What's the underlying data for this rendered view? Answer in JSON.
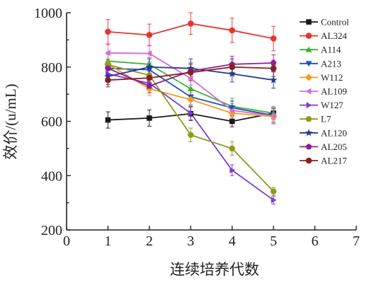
{
  "chart_data": {
    "type": "line",
    "title": "",
    "xlabel": "连续培养代数",
    "ylabel": "效价/(u/mL)",
    "xlim": [
      0,
      7
    ],
    "ylim": [
      200,
      1000
    ],
    "x_ticks": [
      0,
      1,
      2,
      3,
      4,
      5,
      6,
      7
    ],
    "y_ticks": [
      200,
      400,
      600,
      800,
      1000
    ],
    "grid": false,
    "legend_position": "top-right",
    "x": [
      1,
      2,
      3,
      4,
      5
    ],
    "series": [
      {
        "name": "Control",
        "color": "#1a1a1a",
        "marker": "square",
        "values": [
          605,
          612,
          628,
          600,
          630
        ],
        "errors": [
          30,
          30,
          25,
          20,
          20
        ]
      },
      {
        "name": "AL324",
        "color": "#e8342b",
        "marker": "circle",
        "values": [
          930,
          918,
          960,
          935,
          905
        ],
        "errors": [
          45,
          40,
          40,
          45,
          45
        ]
      },
      {
        "name": "A114",
        "color": "#3fb23a",
        "marker": "triangle-up",
        "values": [
          822,
          810,
          720,
          655,
          630
        ],
        "errors": [
          25,
          25,
          30,
          30,
          25
        ]
      },
      {
        "name": "A213",
        "color": "#1f4fb5",
        "marker": "triangle-down",
        "values": [
          795,
          790,
          690,
          650,
          622
        ],
        "errors": [
          25,
          25,
          30,
          25,
          25
        ]
      },
      {
        "name": "W112",
        "color": "#f59b1c",
        "marker": "diamond",
        "values": [
          810,
          720,
          680,
          630,
          618
        ],
        "errors": [
          20,
          25,
          25,
          25,
          25
        ]
      },
      {
        "name": "AL109",
        "color": "#d46bd8",
        "marker": "triangle-left",
        "values": [
          852,
          850,
          758,
          640,
          620
        ],
        "errors": [
          30,
          30,
          25,
          25,
          30
        ]
      },
      {
        "name": "W127",
        "color": "#7b3fd0",
        "marker": "triangle-right",
        "values": [
          775,
          740,
          630,
          420,
          310
        ],
        "errors": [
          25,
          25,
          25,
          20,
          15
        ]
      },
      {
        "name": "L7",
        "color": "#8f9a1e",
        "marker": "hexagon",
        "values": [
          808,
          770,
          550,
          500,
          342
        ],
        "errors": [
          20,
          25,
          25,
          25,
          15
        ]
      },
      {
        "name": "AL120",
        "color": "#213a92",
        "marker": "star",
        "values": [
          765,
          800,
          795,
          775,
          752
        ],
        "errors": [
          30,
          30,
          35,
          30,
          30
        ]
      },
      {
        "name": "AL205",
        "color": "#8a1f96",
        "marker": "pentagon",
        "values": [
          795,
          730,
          785,
          810,
          815
        ],
        "errors": [
          25,
          25,
          30,
          30,
          30
        ]
      },
      {
        "name": "AL217",
        "color": "#8b1f1f",
        "marker": "circle",
        "values": [
          752,
          760,
          780,
          800,
          795
        ],
        "errors": [
          25,
          25,
          30,
          30,
          30
        ]
      }
    ]
  }
}
